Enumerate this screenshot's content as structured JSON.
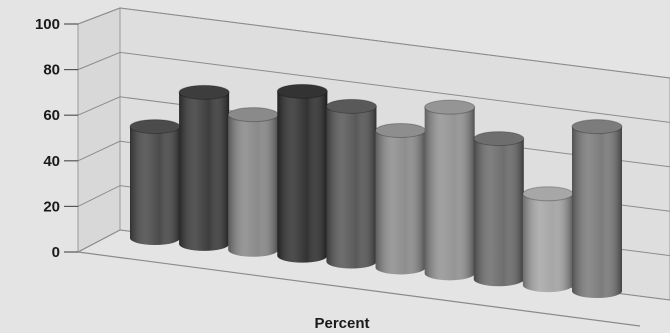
{
  "chart_data": {
    "type": "bar",
    "style": "3d-cylinder",
    "xlabel": "Percent",
    "ylim": [
      0,
      100
    ],
    "yticks": [
      "0",
      "20",
      "40",
      "60",
      "80",
      "100"
    ],
    "grid": true,
    "values": [
      61,
      83,
      74,
      90,
      85,
      75,
      91,
      77,
      50,
      90
    ],
    "colors": [
      "#4b4b4b",
      "#3d3d3d",
      "#8a8a8a",
      "#333333",
      "#595959",
      "#8e8e8e",
      "#959595",
      "#6e6e6e",
      "#a7a7a7",
      "#7c7c7c"
    ]
  }
}
